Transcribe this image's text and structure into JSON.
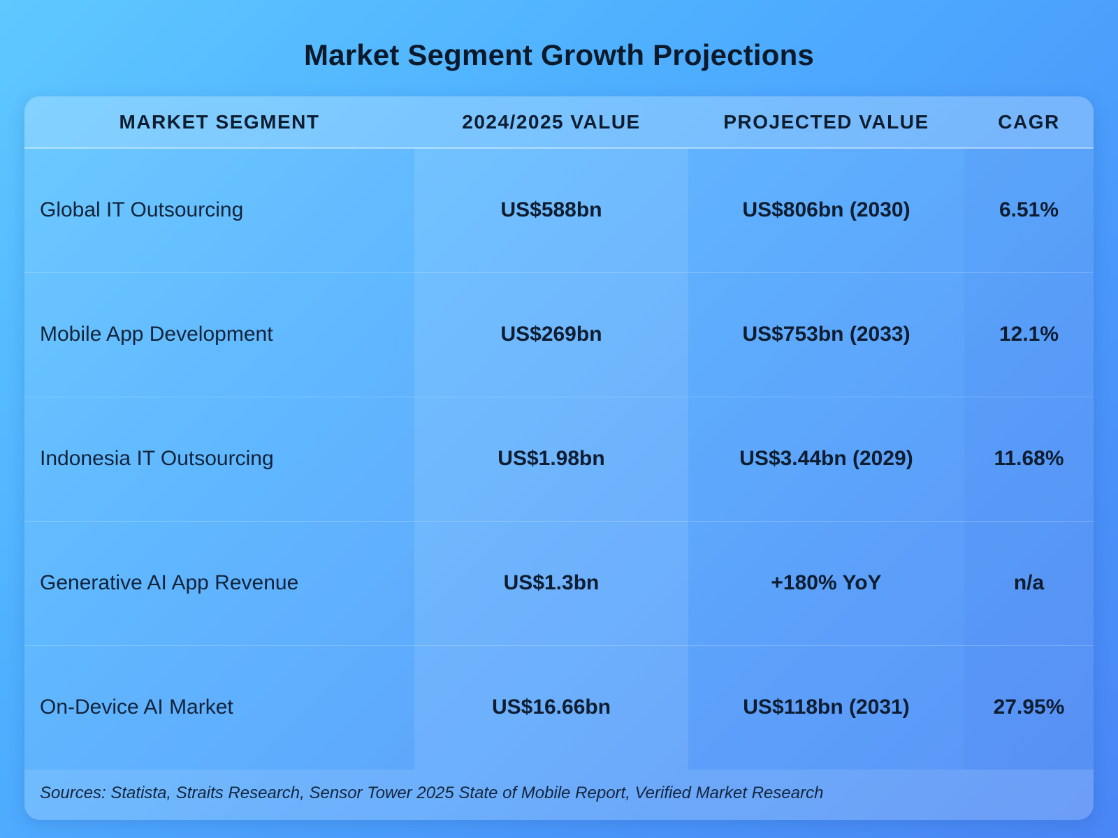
{
  "title": "Market Segment Growth Projections",
  "chart_data": {
    "type": "table",
    "title": "Market Segment Growth Projections",
    "columns": [
      "MARKET SEGMENT",
      "2024/2025 VALUE",
      "PROJECTED VALUE",
      "CAGR"
    ],
    "rows": [
      {
        "segment": "Global IT Outsourcing",
        "current": "US$588bn",
        "projected": "US$806bn (2030)",
        "cagr": "6.51%"
      },
      {
        "segment": "Mobile App Development",
        "current": "US$269bn",
        "projected": "US$753bn (2033)",
        "cagr": "12.1%"
      },
      {
        "segment": "Indonesia IT Outsourcing",
        "current": "US$1.98bn",
        "projected": "US$3.44bn (2029)",
        "cagr": "11.68%"
      },
      {
        "segment": "Generative AI App Revenue",
        "current": "US$1.3bn",
        "projected": "+180% YoY",
        "cagr": "n/a"
      },
      {
        "segment": "On-Device AI Market",
        "current": "US$16.66bn",
        "projected": "US$118bn (2031)",
        "cagr": "27.95%"
      }
    ],
    "source": "Sources: Statista, Straits Research, Sensor Tower 2025 State of Mobile Report, Verified Market Research"
  },
  "colors": {
    "background_start": "#5fc8ff",
    "background_end": "#4a86f6",
    "text": "#0d1b2e"
  }
}
